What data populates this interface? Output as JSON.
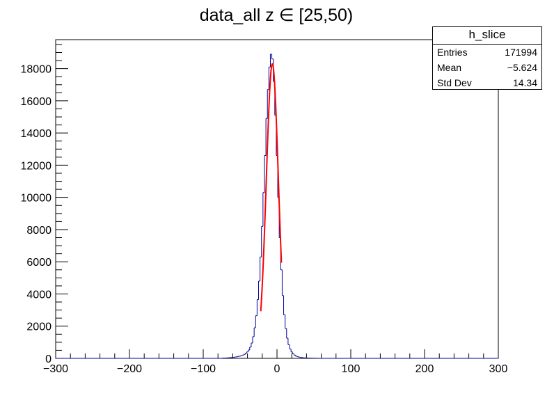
{
  "chart_data": {
    "type": "histogram",
    "title": "data_all z ∈ [25,50)",
    "xlabel": "",
    "ylabel": "",
    "xlim": [
      -300,
      300
    ],
    "ylim": [
      0,
      19800
    ],
    "x_ticks": [
      "−300",
      "−200",
      "−100",
      "0",
      "100",
      "200",
      "300"
    ],
    "x_tick_values": [
      -300,
      -200,
      -100,
      0,
      100,
      200,
      300
    ],
    "y_ticks": [
      "0",
      "2000",
      "4000",
      "6000",
      "8000",
      "10000",
      "12000",
      "14000",
      "16000",
      "18000"
    ],
    "y_tick_values": [
      0,
      2000,
      4000,
      6000,
      8000,
      10000,
      12000,
      14000,
      16000,
      18000
    ],
    "bin_width": 2,
    "histogram_color": "#000099",
    "fit_color": "#ff0000",
    "bins": [
      {
        "x": -74,
        "y": 10
      },
      {
        "x": -72,
        "y": 15
      },
      {
        "x": -70,
        "y": 20
      },
      {
        "x": -68,
        "y": 25
      },
      {
        "x": -66,
        "y": 30
      },
      {
        "x": -64,
        "y": 40
      },
      {
        "x": -62,
        "y": 50
      },
      {
        "x": -60,
        "y": 60
      },
      {
        "x": -58,
        "y": 70
      },
      {
        "x": -56,
        "y": 85
      },
      {
        "x": -54,
        "y": 100
      },
      {
        "x": -52,
        "y": 120
      },
      {
        "x": -50,
        "y": 140
      },
      {
        "x": -48,
        "y": 170
      },
      {
        "x": -46,
        "y": 200
      },
      {
        "x": -44,
        "y": 250
      },
      {
        "x": -42,
        "y": 320
      },
      {
        "x": -40,
        "y": 400
      },
      {
        "x": -38,
        "y": 520
      },
      {
        "x": -36,
        "y": 700
      },
      {
        "x": -34,
        "y": 950
      },
      {
        "x": -32,
        "y": 1350
      },
      {
        "x": -30,
        "y": 1900
      },
      {
        "x": -28,
        "y": 2650
      },
      {
        "x": -26,
        "y": 3650
      },
      {
        "x": -24,
        "y": 4800
      },
      {
        "x": -22,
        "y": 6300
      },
      {
        "x": -20,
        "y": 8200
      },
      {
        "x": -18,
        "y": 10300
      },
      {
        "x": -16,
        "y": 12600
      },
      {
        "x": -14,
        "y": 14900
      },
      {
        "x": -12,
        "y": 16700
      },
      {
        "x": -10,
        "y": 18100
      },
      {
        "x": -8,
        "y": 18900
      },
      {
        "x": -6,
        "y": 18600
      },
      {
        "x": -4,
        "y": 17200
      },
      {
        "x": -2,
        "y": 15100
      },
      {
        "x": 0,
        "y": 12600
      },
      {
        "x": 2,
        "y": 10000
      },
      {
        "x": 4,
        "y": 7500
      },
      {
        "x": 6,
        "y": 5500
      },
      {
        "x": 8,
        "y": 3900
      },
      {
        "x": 10,
        "y": 2700
      },
      {
        "x": 12,
        "y": 1850
      },
      {
        "x": 14,
        "y": 1250
      },
      {
        "x": 16,
        "y": 850
      },
      {
        "x": 18,
        "y": 580
      },
      {
        "x": 20,
        "y": 400
      },
      {
        "x": 22,
        "y": 280
      },
      {
        "x": 24,
        "y": 200
      },
      {
        "x": 26,
        "y": 145
      },
      {
        "x": 28,
        "y": 105
      },
      {
        "x": 30,
        "y": 80
      },
      {
        "x": 32,
        "y": 60
      },
      {
        "x": 34,
        "y": 45
      },
      {
        "x": 36,
        "y": 35
      },
      {
        "x": 38,
        "y": 28
      },
      {
        "x": 40,
        "y": 22
      },
      {
        "x": 42,
        "y": 18
      },
      {
        "x": 44,
        "y": 14
      },
      {
        "x": 46,
        "y": 11
      },
      {
        "x": 48,
        "y": 9
      },
      {
        "x": 50,
        "y": 7
      },
      {
        "x": 52,
        "y": 5
      },
      {
        "x": 54,
        "y": 4
      },
      {
        "x": 56,
        "y": 3
      }
    ],
    "fit": {
      "type": "gaussian",
      "amplitude": 18300,
      "mean": -6.3,
      "sigma": 8.2,
      "range": [
        -22,
        6
      ]
    },
    "stats": {
      "name": "h_slice",
      "rows": [
        {
          "label": "Entries",
          "value": "171994"
        },
        {
          "label": "Mean",
          "value": "−5.624"
        },
        {
          "label": "Std Dev",
          "value": "14.34"
        }
      ]
    }
  }
}
